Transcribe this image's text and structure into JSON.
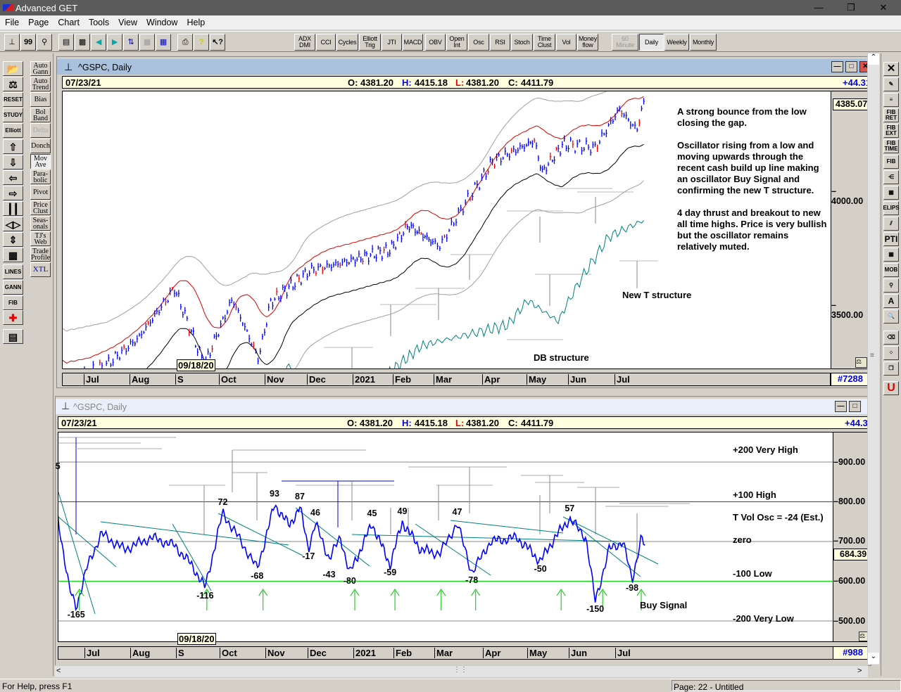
{
  "app": {
    "title": "Advanced GET"
  },
  "menu": [
    "File",
    "Page",
    "Chart",
    "Tools",
    "View",
    "Window",
    "Help"
  ],
  "toolbar": {
    "studies": [
      "ADX\nDMI",
      "CCI",
      "Cycles",
      "Elliott\nTrig",
      "JTI",
      "MACD",
      "OBV",
      "Open\nInt",
      "Osc",
      "RSI",
      "Stoch",
      "Time\nClust",
      "Vol",
      "Money\nflow"
    ],
    "timeframes": [
      "60\nMinute",
      "Daily",
      "Weekly",
      "Monthly"
    ],
    "active_timeframe": "Daily"
  },
  "left_toolbar": {
    "col1": [
      "open-icon",
      "balance-icon",
      "RESET",
      "STUDY",
      "Elliott",
      "up-icon",
      "down-icon",
      "left-icon",
      "right-icon",
      "bars-icon",
      "expand-icon",
      "compress-icon",
      "grid-icon",
      "LINES",
      "GANN",
      "FIB",
      "crosshair-icon",
      "properties-icon"
    ],
    "col2": [
      "Auto\nGann",
      "Auto\nTrend",
      "Bias",
      "Bol\nBand",
      "Delta",
      "Donch",
      "Mov\nAve",
      "Para-\nbolic",
      "Pivot",
      "Price\nClust",
      "Seas-\nonals",
      "TJ's\nWeb",
      "Trade\nProfile",
      "XTL"
    ]
  },
  "right_toolbar": [
    "close-x",
    "pencil",
    "lines",
    "FIB\nRET",
    "FIB\nEXT",
    "FIB\nTIME",
    "FIB",
    "fan",
    "grid",
    "ELIPS",
    "channel",
    "PTI",
    "table",
    "MOB",
    "search",
    "A",
    "zoom",
    "eraser",
    "pattern",
    "copy",
    "U"
  ],
  "top_chart": {
    "title": "^GSPC, Daily",
    "date": "07/23/21",
    "o_label": "O:",
    "open": "4381.20",
    "h_label": "H:",
    "high": "4415.18",
    "l_label": "L:",
    "low": "4381.20",
    "c_label": "C:",
    "close": "4411.79",
    "change": "+44.31",
    "last_price": "4385.07",
    "y_ticks": [
      "4000.00",
      "3500.00"
    ],
    "bar_count": "#7288",
    "cursor_date": "09/18/20",
    "months": [
      "Jul",
      "Aug",
      "S",
      "Oct",
      "Nov",
      "Dec",
      "2021",
      "Feb",
      "Mar",
      "Apr",
      "May",
      "Jun",
      "Jul"
    ],
    "notes": [
      "A strong bounce from the low closing the gap.",
      "Oscillator rising from a low and moving upwards through the recent cash build up line making an oscillator Buy Signal and confirming the new T structure.",
      "4 day thrust and breakout to new all time highs. Price is very bullish but the oscillator remains relatively muted."
    ],
    "label_t": "New T structure",
    "label_db": "DB structure"
  },
  "bottom_chart": {
    "title": "^GSPC, Daily",
    "date": "07/23/21",
    "o_label": "O:",
    "open": "4381.20",
    "h_label": "H:",
    "high": "4415.18",
    "l_label": "L:",
    "low": "4381.20",
    "c_label": "C:",
    "close": "4411.79",
    "change": "+44.3",
    "last_value": "684.39",
    "y_ticks": [
      "900.00",
      "800.00",
      "700.00",
      "600.00",
      "500.00"
    ],
    "bar_count": "#988",
    "cursor_date": "09/18/20",
    "months": [
      "Jul",
      "Aug",
      "S",
      "Oct",
      "Nov",
      "Dec",
      "2021",
      "Feb",
      "Mar",
      "Apr",
      "May",
      "Jun",
      "Jul"
    ],
    "levels": [
      "+200 Very High",
      "+100 High",
      "T Vol Osc = -24 (Est.)",
      "zero",
      "-100 Low",
      "-200 Very Low"
    ],
    "buy_signal": "Buy Signal"
  },
  "status": {
    "help": "For Help, press F1",
    "page": "Page: 22 - Untitled"
  },
  "chart_data": [
    {
      "type": "line",
      "title": "^GSPC, Daily",
      "x_unit": "months since 2020-07-01",
      "ylim": [
        3150,
        4420
      ],
      "price": [
        [
          -0.45,
          3150
        ],
        [
          0.49,
          3232
        ],
        [
          1.2,
          3350
        ],
        [
          2.0,
          3571
        ],
        [
          2.68,
          3232
        ],
        [
          3.31,
          3525
        ],
        [
          3.88,
          3262
        ],
        [
          4.15,
          3509
        ],
        [
          5.08,
          3648
        ],
        [
          6.0,
          3694
        ],
        [
          6.96,
          3741
        ],
        [
          7.4,
          3849
        ],
        [
          8.14,
          3756
        ],
        [
          8.65,
          3941
        ],
        [
          9.25,
          4127
        ],
        [
          10.21,
          4219
        ],
        [
          10.39,
          4080
        ],
        [
          10.9,
          4204
        ],
        [
          11.6,
          4188
        ],
        [
          12.12,
          4358
        ],
        [
          12.5,
          4265
        ],
        [
          12.69,
          4411.79
        ]
      ],
      "colors": {
        "price": "#0000ff",
        "upper_ma": "#e00000",
        "lower_ma": "#000000",
        "long_ma": "#008080",
        "bands": "#a0a0a0"
      }
    },
    {
      "type": "line",
      "title": "T Vol Osc",
      "x_unit": "months since 2020-07-01",
      "ylim": [
        -230,
        230
      ],
      "levels": [
        200,
        100,
        0,
        -100,
        -200
      ],
      "osc": [
        [
          -0.55,
          60
        ],
        [
          -0.3,
          -120
        ],
        [
          -0.15,
          -165
        ],
        [
          0.1,
          -60
        ],
        [
          0.4,
          20
        ],
        [
          0.9,
          -20
        ],
        [
          1.5,
          10
        ],
        [
          2.0,
          -10
        ],
        [
          2.4,
          -60
        ],
        [
          2.7,
          -116
        ],
        [
          3.1,
          72
        ],
        [
          3.5,
          0
        ],
        [
          3.85,
          -68
        ],
        [
          4.25,
          93
        ],
        [
          4.6,
          40
        ],
        [
          4.85,
          87
        ],
        [
          5.05,
          -17
        ],
        [
          5.2,
          46
        ],
        [
          5.5,
          -43
        ],
        [
          5.75,
          10
        ],
        [
          5.95,
          -80
        ],
        [
          6.5,
          45
        ],
        [
          6.95,
          -59
        ],
        [
          7.25,
          49
        ],
        [
          7.7,
          -20
        ],
        [
          8.15,
          -30
        ],
        [
          8.5,
          47
        ],
        [
          8.8,
          -78
        ],
        [
          9.2,
          0
        ],
        [
          9.8,
          10
        ],
        [
          10.35,
          -50
        ],
        [
          10.7,
          10
        ],
        [
          11.05,
          57
        ],
        [
          11.4,
          10
        ],
        [
          11.6,
          -150
        ],
        [
          11.9,
          -20
        ],
        [
          12.2,
          0
        ],
        [
          12.4,
          -98
        ],
        [
          12.6,
          10
        ],
        [
          12.69,
          -16
        ]
      ],
      "labels": [
        [
          -0.15,
          -165,
          "-165"
        ],
        [
          2.7,
          -116,
          "-116"
        ],
        [
          3.1,
          72,
          "72"
        ],
        [
          3.85,
          -68,
          "-68"
        ],
        [
          4.25,
          93,
          "93"
        ],
        [
          4.85,
          87,
          "87"
        ],
        [
          5.2,
          46,
          "46"
        ],
        [
          5.05,
          -17,
          "-17"
        ],
        [
          5.5,
          -43,
          "-43"
        ],
        [
          5.95,
          -80,
          "-80"
        ],
        [
          6.5,
          45,
          "45"
        ],
        [
          6.95,
          -59,
          "-59"
        ],
        [
          7.25,
          49,
          "49"
        ],
        [
          8.5,
          47,
          "47"
        ],
        [
          8.8,
          -78,
          "-78"
        ],
        [
          10.35,
          -50,
          "-50"
        ],
        [
          11.05,
          57,
          "57"
        ],
        [
          11.6,
          -150,
          "-150"
        ],
        [
          12.4,
          -98,
          "-98"
        ],
        [
          -0.55,
          0,
          "5"
        ]
      ],
      "buy_signals": [
        -0.08,
        2.74,
        3.98,
        6.07,
        7.07,
        8.17,
        8.88,
        10.85,
        11.76,
        12.6
      ],
      "colors": {
        "osc": "#0000ff",
        "high": "#e00000",
        "low": "#00e000",
        "buy": "#00c000",
        "trend": "#008080"
      }
    }
  ]
}
